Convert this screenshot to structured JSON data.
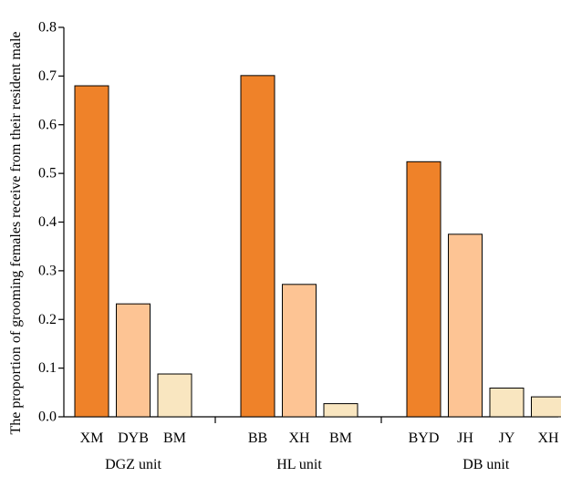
{
  "chart_data": {
    "type": "bar",
    "ylabel": "The proportion of grooming females receive from their resident male",
    "xlabel": "",
    "ylim": [
      0,
      0.8
    ],
    "yticks": [
      0.0,
      0.1,
      0.2,
      0.3,
      0.4,
      0.5,
      0.6,
      0.7,
      0.8
    ],
    "ytick_labels": [
      "0.0",
      "0.1",
      "0.2",
      "0.3",
      "0.4",
      "0.5",
      "0.6",
      "0.7",
      "0.8"
    ],
    "grid": false,
    "legend": "none",
    "groups": [
      {
        "label": "DGZ unit",
        "bars": [
          {
            "category": "XM",
            "value": 0.68,
            "color": "#EF8229"
          },
          {
            "category": "DYB",
            "value": 0.232,
            "color": "#FDC494"
          },
          {
            "category": "BM",
            "value": 0.088,
            "color": "#F9E6C0"
          }
        ]
      },
      {
        "label": "HL unit",
        "bars": [
          {
            "category": "BB",
            "value": 0.701,
            "color": "#EF8229"
          },
          {
            "category": "XH",
            "value": 0.272,
            "color": "#FDC494"
          },
          {
            "category": "BM",
            "value": 0.027,
            "color": "#F9E6C0"
          }
        ]
      },
      {
        "label": "DB unit",
        "bars": [
          {
            "category": "BYD",
            "value": 0.524,
            "color": "#EF8229"
          },
          {
            "category": "JH",
            "value": 0.375,
            "color": "#FDC494"
          },
          {
            "category": "JY",
            "value": 0.059,
            "color": "#F9E6C0"
          },
          {
            "category": "XH",
            "value": 0.041,
            "color": "#F9E6C0"
          }
        ]
      }
    ]
  }
}
